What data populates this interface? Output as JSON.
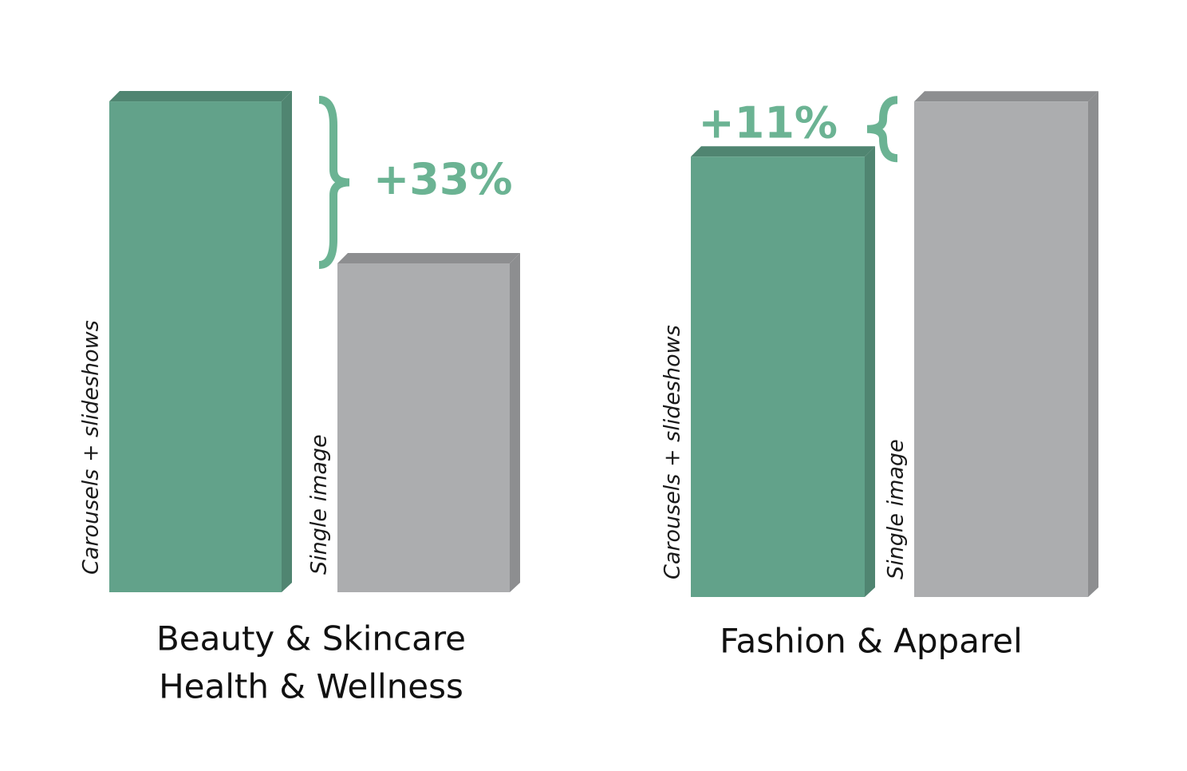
{
  "chart_data": [
    {
      "type": "bar",
      "title": [
        "Beauty & Skincare",
        "Health & Wellness"
      ],
      "categories": [
        "Carousels + slideshows",
        "Single image"
      ],
      "values": [
        133,
        100
      ],
      "colors": [
        "#62a28a",
        "#acadaf"
      ],
      "ylim": [
        33,
        140
      ],
      "annotation": "+33%"
    },
    {
      "type": "bar",
      "title": [
        "Fashion & Apparel"
      ],
      "categories": [
        "Carousels + slideshows",
        "Single image"
      ],
      "values": [
        100,
        111
      ],
      "colors": [
        "#62a28a",
        "#acadaf"
      ],
      "ylim": [
        12,
        112
      ],
      "annotation": "+11%"
    }
  ]
}
